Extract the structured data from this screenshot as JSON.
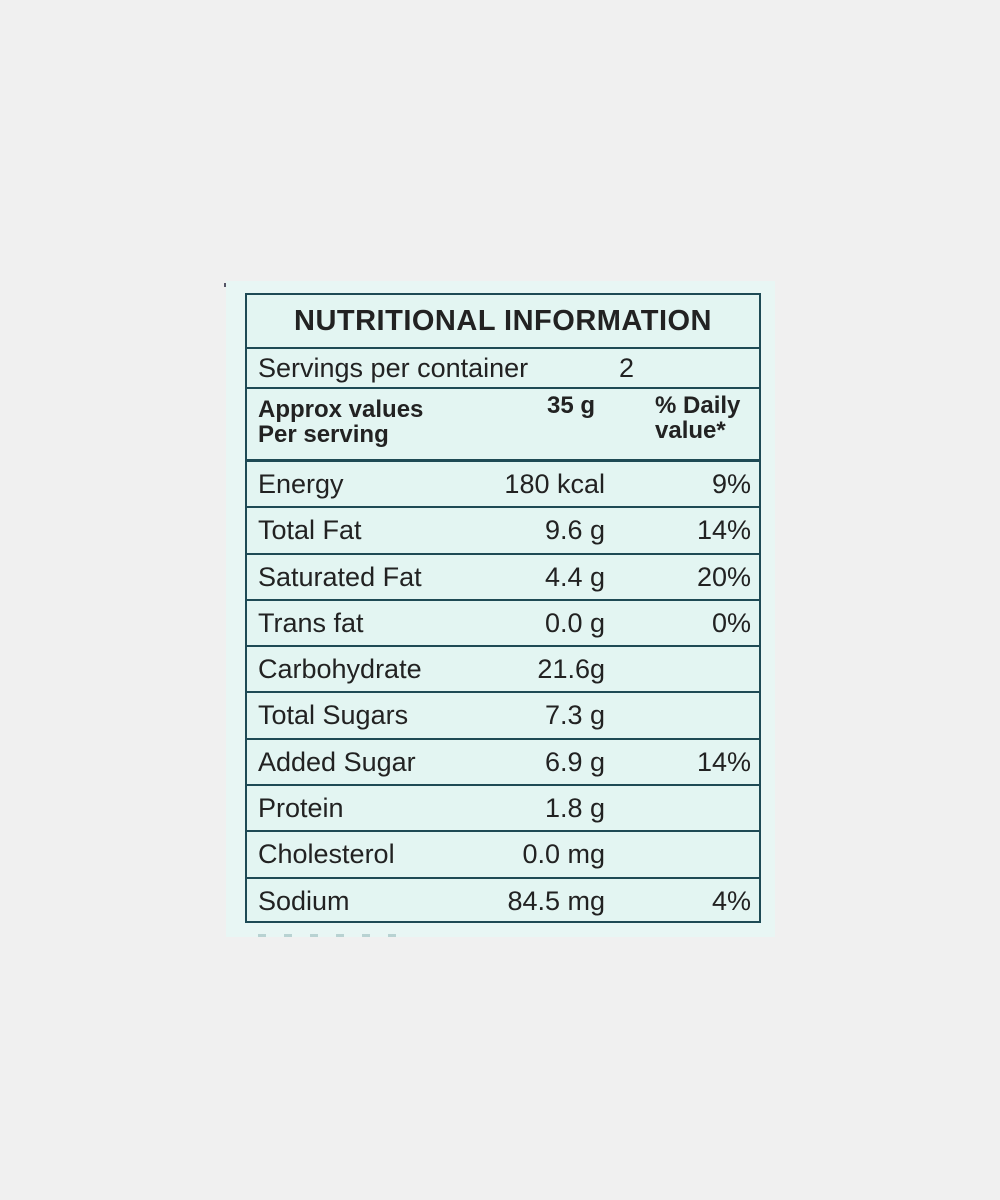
{
  "label": {
    "title": "NUTRITIONAL INFORMATION",
    "servings_label": "Servings per container",
    "servings_value": "2",
    "header": {
      "col1_line1": "Approx values",
      "col1_line2": "Per serving",
      "col2": "35 g",
      "col3_line1": "% Daily",
      "col3_line2": "value*"
    },
    "rows": [
      {
        "name": "Energy",
        "amount": "180 kcal",
        "dv": "9%"
      },
      {
        "name": "Total Fat",
        "amount": "9.6 g",
        "dv": "14%"
      },
      {
        "name": "Saturated Fat",
        "amount": "4.4 g",
        "dv": "20%"
      },
      {
        "name": "Trans fat",
        "amount": "0.0 g",
        "dv": "0%"
      },
      {
        "name": "Carbohydrate",
        "amount": "21.6g",
        "dv": ""
      },
      {
        "name": "Total Sugars",
        "amount": "7.3 g",
        "dv": ""
      },
      {
        "name": "Added Sugar",
        "amount": "6.9 g",
        "dv": "14%"
      },
      {
        "name": "Protein",
        "amount": "1.8 g",
        "dv": ""
      },
      {
        "name": "Cholesterol",
        "amount": "0.0 mg",
        "dv": ""
      },
      {
        "name": "Sodium",
        "amount": "84.5 mg",
        "dv": "4%"
      }
    ]
  },
  "colors": {
    "page_background": "#f0f0f0",
    "panel_background": "#e3f5f2",
    "border": "#1e4a55",
    "text": "#222222"
  }
}
